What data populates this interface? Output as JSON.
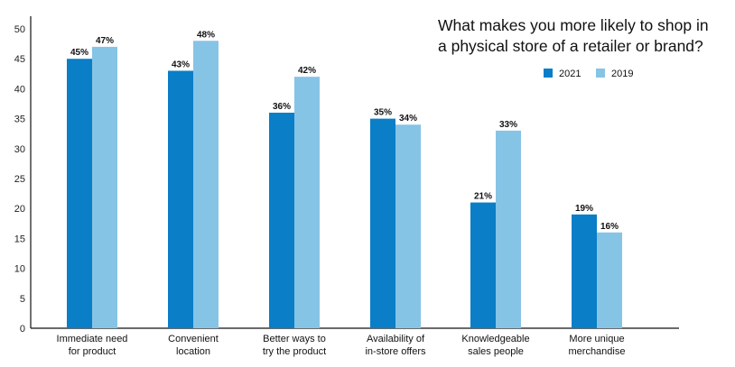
{
  "chart_data": {
    "type": "bar",
    "title_lines": [
      "What makes you more likely to shop in",
      "a physical store of a retailer or brand?"
    ],
    "categories": [
      [
        "Immediate need",
        "for product"
      ],
      [
        "Convenient",
        "location"
      ],
      [
        "Better ways to",
        "try the product"
      ],
      [
        "Availability of",
        "in-store offers"
      ],
      [
        "Knowledgeable",
        "sales people"
      ],
      [
        "More unique",
        "merchandise"
      ]
    ],
    "series": [
      {
        "name": "2021",
        "color": "#0a7ec7",
        "values": [
          45,
          43,
          36,
          35,
          21,
          19
        ],
        "labels": [
          "45%",
          "43%",
          "36%",
          "35%",
          "21%",
          "19%"
        ]
      },
      {
        "name": "2019",
        "color": "#86c4e6",
        "values": [
          47,
          48,
          42,
          34,
          33,
          16
        ],
        "labels": [
          "47%",
          "48%",
          "42%",
          "34%",
          "33%",
          "16%"
        ]
      }
    ],
    "ylim": [
      0,
      50
    ],
    "yticks": [
      "0",
      "5",
      "10",
      "15",
      "20",
      "25",
      "30",
      "35",
      "40",
      "45",
      "50"
    ],
    "legend_position": "top-right",
    "grid": false
  }
}
